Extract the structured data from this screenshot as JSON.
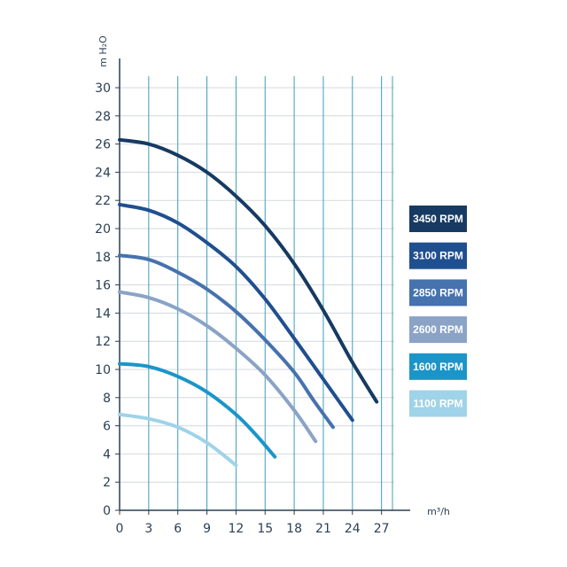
{
  "chart_data": {
    "type": "line",
    "xlabel": "m³/h",
    "ylabel": "m H₂O",
    "xlim": [
      0,
      28
    ],
    "ylim": [
      0,
      30
    ],
    "x_ticks": [
      0,
      3,
      6,
      9,
      12,
      15,
      18,
      21,
      24,
      27
    ],
    "y_ticks": [
      0,
      2,
      4,
      6,
      8,
      10,
      12,
      14,
      16,
      18,
      20,
      22,
      24,
      26,
      28,
      30
    ],
    "grid": "vertical",
    "legend_position": "right",
    "series": [
      {
        "name": "3450 RPM",
        "color": "#163a62",
        "x": [
          0,
          3,
          6,
          9,
          12,
          15,
          18,
          21,
          24,
          26.5
        ],
        "y": [
          26.3,
          26.0,
          25.2,
          24.0,
          22.3,
          20.2,
          17.5,
          14.2,
          10.5,
          7.7
        ]
      },
      {
        "name": "3100 RPM",
        "color": "#1f4f8f",
        "x": [
          0,
          3,
          6,
          9,
          12,
          15,
          18,
          21,
          24
        ],
        "y": [
          21.7,
          21.3,
          20.4,
          19.0,
          17.3,
          15.0,
          12.2,
          9.3,
          6.4
        ]
      },
      {
        "name": "2850 RPM",
        "color": "#4672ad",
        "x": [
          0,
          3,
          6,
          9,
          12,
          15,
          18,
          20,
          22
        ],
        "y": [
          18.1,
          17.8,
          16.9,
          15.7,
          14.1,
          12.1,
          9.8,
          7.8,
          5.9
        ]
      },
      {
        "name": "2600 RPM",
        "color": "#8aa3c6",
        "x": [
          0,
          3,
          6,
          9,
          12,
          15,
          18,
          20.2
        ],
        "y": [
          15.5,
          15.1,
          14.3,
          13.1,
          11.5,
          9.6,
          7.1,
          4.9
        ]
      },
      {
        "name": "1600 RPM",
        "color": "#1b95c8",
        "x": [
          0,
          3,
          6,
          9,
          12,
          14,
          16
        ],
        "y": [
          10.4,
          10.2,
          9.5,
          8.4,
          6.8,
          5.4,
          3.8
        ]
      },
      {
        "name": "1100 RPM",
        "color": "#9fd3e8",
        "x": [
          0,
          3,
          6,
          9,
          12
        ],
        "y": [
          6.8,
          6.5,
          5.9,
          4.8,
          3.2
        ]
      }
    ]
  }
}
